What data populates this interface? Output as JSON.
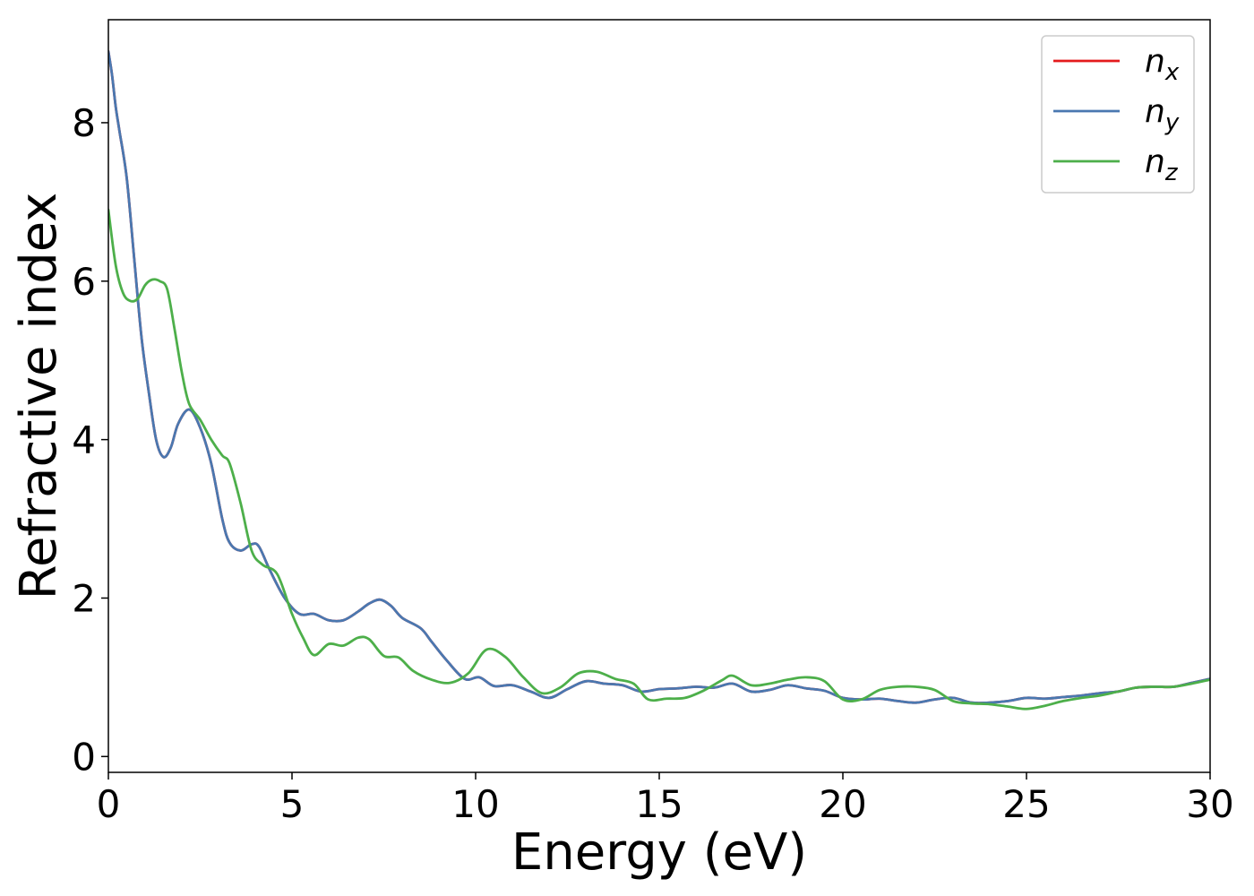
{
  "chart_data": {
    "type": "line",
    "title": "",
    "xlabel": "Energy (eV)",
    "ylabel": "Refractive index",
    "xlim": [
      0,
      30
    ],
    "ylim": [
      -0.2,
      9.3
    ],
    "xticks": [
      0,
      5,
      10,
      15,
      20,
      25,
      30
    ],
    "yticks": [
      0,
      2,
      4,
      6,
      8
    ],
    "grid": false,
    "legend_position": "top-right",
    "series": [
      {
        "name": "n",
        "subscript": "x",
        "color": "#e41a1c",
        "x": [
          0,
          0.1,
          0.2,
          0.3,
          0.5,
          0.7,
          0.9,
          1.1,
          1.3,
          1.5,
          1.7,
          1.9,
          2.2,
          2.5,
          2.8,
          3.1,
          3.3,
          3.6,
          3.9,
          4.1,
          4.4,
          4.8,
          5.2,
          5.6,
          6.0,
          6.4,
          6.8,
          7.1,
          7.4,
          7.7,
          8.0,
          8.5,
          8.8,
          9.2,
          9.7,
          10.1,
          10.5,
          11.0,
          11.5,
          12.0,
          12.5,
          13.0,
          13.5,
          14.0,
          14.5,
          15.0,
          15.5,
          16.0,
          16.5,
          17.0,
          17.5,
          18.0,
          18.5,
          19.0,
          19.5,
          20.0,
          20.5,
          21.0,
          21.5,
          22.0,
          22.5,
          23.0,
          23.5,
          24.0,
          24.5,
          25.0,
          25.5,
          26.0,
          26.5,
          27.0,
          27.5,
          28.0,
          28.5,
          29.0,
          29.5,
          30.0
        ],
        "y": [
          8.9,
          8.6,
          8.2,
          7.9,
          7.3,
          6.3,
          5.3,
          4.6,
          4.0,
          3.78,
          3.9,
          4.2,
          4.38,
          4.15,
          3.7,
          3.0,
          2.7,
          2.6,
          2.68,
          2.65,
          2.35,
          2.0,
          1.8,
          1.8,
          1.72,
          1.72,
          1.83,
          1.93,
          1.98,
          1.9,
          1.75,
          1.62,
          1.45,
          1.22,
          0.98,
          1.0,
          0.89,
          0.9,
          0.82,
          0.74,
          0.85,
          0.95,
          0.92,
          0.9,
          0.82,
          0.85,
          0.86,
          0.88,
          0.87,
          0.92,
          0.82,
          0.84,
          0.9,
          0.86,
          0.83,
          0.74,
          0.72,
          0.73,
          0.7,
          0.68,
          0.72,
          0.74,
          0.68,
          0.68,
          0.7,
          0.74,
          0.73,
          0.75,
          0.77,
          0.8,
          0.82,
          0.87,
          0.88,
          0.88,
          0.93,
          0.98
        ]
      },
      {
        "name": "n",
        "subscript": "y",
        "color": "#4a78b0",
        "x": [
          0,
          0.1,
          0.2,
          0.3,
          0.5,
          0.7,
          0.9,
          1.1,
          1.3,
          1.5,
          1.7,
          1.9,
          2.2,
          2.5,
          2.8,
          3.1,
          3.3,
          3.6,
          3.9,
          4.1,
          4.4,
          4.8,
          5.2,
          5.6,
          6.0,
          6.4,
          6.8,
          7.1,
          7.4,
          7.7,
          8.0,
          8.5,
          8.8,
          9.2,
          9.7,
          10.1,
          10.5,
          11.0,
          11.5,
          12.0,
          12.5,
          13.0,
          13.5,
          14.0,
          14.5,
          15.0,
          15.5,
          16.0,
          16.5,
          17.0,
          17.5,
          18.0,
          18.5,
          19.0,
          19.5,
          20.0,
          20.5,
          21.0,
          21.5,
          22.0,
          22.5,
          23.0,
          23.5,
          24.0,
          24.5,
          25.0,
          25.5,
          26.0,
          26.5,
          27.0,
          27.5,
          28.0,
          28.5,
          29.0,
          29.5,
          30.0
        ],
        "y": [
          8.9,
          8.6,
          8.2,
          7.9,
          7.3,
          6.3,
          5.3,
          4.6,
          4.0,
          3.78,
          3.9,
          4.2,
          4.38,
          4.15,
          3.7,
          3.0,
          2.7,
          2.6,
          2.68,
          2.65,
          2.35,
          2.0,
          1.8,
          1.8,
          1.72,
          1.72,
          1.83,
          1.93,
          1.98,
          1.9,
          1.75,
          1.62,
          1.45,
          1.22,
          0.98,
          1.0,
          0.89,
          0.9,
          0.82,
          0.74,
          0.85,
          0.95,
          0.92,
          0.9,
          0.82,
          0.85,
          0.86,
          0.88,
          0.87,
          0.92,
          0.82,
          0.84,
          0.9,
          0.86,
          0.83,
          0.74,
          0.72,
          0.73,
          0.7,
          0.68,
          0.72,
          0.74,
          0.68,
          0.68,
          0.7,
          0.74,
          0.73,
          0.75,
          0.77,
          0.8,
          0.82,
          0.87,
          0.88,
          0.88,
          0.93,
          0.98
        ]
      },
      {
        "name": "n",
        "subscript": "z",
        "color": "#4daf4a",
        "x": [
          0,
          0.2,
          0.4,
          0.6,
          0.8,
          1.0,
          1.2,
          1.4,
          1.6,
          1.8,
          2.0,
          2.2,
          2.5,
          2.8,
          3.1,
          3.3,
          3.6,
          3.9,
          4.2,
          4.6,
          5.0,
          5.3,
          5.6,
          6.0,
          6.4,
          6.8,
          7.1,
          7.5,
          7.9,
          8.3,
          8.8,
          9.3,
          9.8,
          10.3,
          10.8,
          11.3,
          11.8,
          12.3,
          12.8,
          13.3,
          13.8,
          14.3,
          14.7,
          15.2,
          15.7,
          16.2,
          16.7,
          17.0,
          17.5,
          18.0,
          18.5,
          19.0,
          19.5,
          20.0,
          20.5,
          21.0,
          21.5,
          22.0,
          22.5,
          23.0,
          23.5,
          24.0,
          24.5,
          25.0,
          25.5,
          26.0,
          26.5,
          27.0,
          27.5,
          28.0,
          28.5,
          29.0,
          29.5,
          30.0
        ],
        "y": [
          6.9,
          6.2,
          5.85,
          5.75,
          5.78,
          5.95,
          6.02,
          6.0,
          5.9,
          5.4,
          4.85,
          4.45,
          4.25,
          4.0,
          3.8,
          3.7,
          3.2,
          2.6,
          2.42,
          2.3,
          1.8,
          1.5,
          1.28,
          1.42,
          1.4,
          1.5,
          1.48,
          1.27,
          1.25,
          1.08,
          0.97,
          0.93,
          1.05,
          1.35,
          1.26,
          1.0,
          0.8,
          0.87,
          1.05,
          1.07,
          0.98,
          0.92,
          0.72,
          0.73,
          0.74,
          0.83,
          0.96,
          1.02,
          0.9,
          0.92,
          0.97,
          1.0,
          0.95,
          0.72,
          0.72,
          0.84,
          0.88,
          0.88,
          0.84,
          0.7,
          0.67,
          0.66,
          0.63,
          0.6,
          0.64,
          0.7,
          0.74,
          0.77,
          0.82,
          0.87,
          0.88,
          0.88,
          0.92,
          0.97
        ]
      }
    ]
  }
}
